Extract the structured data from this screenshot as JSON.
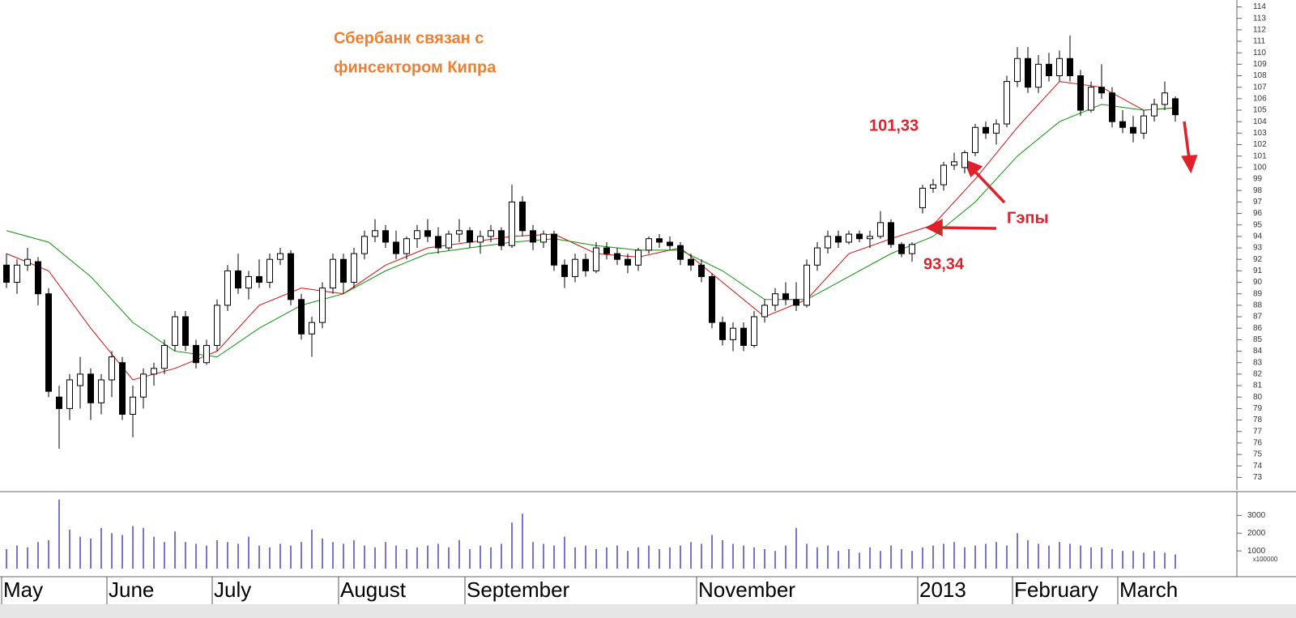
{
  "chart_data": [
    {
      "type": "candlestick",
      "annotations": {
        "title_line1": "Сбербанк связан с",
        "title_line2": "финсектором Кипра",
        "gap_high": "101,33",
        "gaps": "Гэпы",
        "gap_low": "93,34"
      },
      "categories": [
        "May",
        null,
        null,
        null,
        null,
        null,
        null,
        null,
        null,
        null,
        "June",
        null,
        null,
        null,
        null,
        null,
        null,
        null,
        null,
        null,
        "July",
        null,
        null,
        null,
        null,
        null,
        null,
        null,
        null,
        null,
        null,
        null,
        "August",
        null,
        null,
        null,
        null,
        null,
        null,
        null,
        null,
        null,
        null,
        null,
        "September",
        null,
        null,
        null,
        null,
        null,
        null,
        null,
        null,
        null,
        null,
        null,
        null,
        null,
        null,
        null,
        null,
        null,
        null,
        null,
        null,
        null,
        "November",
        null,
        null,
        null,
        null,
        null,
        null,
        null,
        null,
        null,
        null,
        null,
        null,
        null,
        null,
        null,
        null,
        null,
        null,
        null,
        null,
        "2013",
        null,
        null,
        null,
        null,
        null,
        null,
        null,
        null,
        "February",
        null,
        null,
        null,
        null,
        null,
        null,
        null,
        null,
        null,
        "March",
        null,
        null,
        null,
        null,
        null
      ],
      "values": [
        [
          91.5,
          92.5,
          89.5,
          90
        ],
        [
          90,
          92,
          89,
          91.5
        ],
        [
          91.5,
          93,
          91,
          92
        ],
        [
          91.8,
          92.2,
          88,
          89
        ],
        [
          89,
          89.5,
          80,
          80.5
        ],
        [
          80,
          81,
          75.5,
          79
        ],
        [
          79,
          82,
          78,
          81.5
        ],
        [
          81,
          83.5,
          79,
          82
        ],
        [
          82,
          82.5,
          78,
          79.5
        ],
        [
          79.5,
          82,
          78.5,
          81.5
        ],
        [
          81.5,
          84,
          80,
          83.5
        ],
        [
          83,
          83.5,
          78,
          78.5
        ],
        [
          78.5,
          81,
          76.5,
          80
        ],
        [
          80,
          82.5,
          79,
          82
        ],
        [
          82,
          83,
          81,
          82.5
        ],
        [
          82.5,
          85,
          82,
          84.5
        ],
        [
          84.5,
          87.5,
          84,
          87
        ],
        [
          87,
          87.5,
          84,
          84.5
        ],
        [
          84.5,
          85,
          82.5,
          83
        ],
        [
          83,
          85,
          82.8,
          84.5
        ],
        [
          84.5,
          88.5,
          84,
          88
        ],
        [
          88,
          91.5,
          87.5,
          91
        ],
        [
          91,
          92.5,
          89,
          89.5
        ],
        [
          89.5,
          91,
          88.5,
          90.5
        ],
        [
          90.5,
          92,
          89.5,
          90
        ],
        [
          90,
          92.5,
          89.5,
          92
        ],
        [
          92,
          93,
          91.5,
          92.5
        ],
        [
          92.5,
          92.8,
          88,
          88.5
        ],
        [
          88.5,
          89,
          85,
          85.5
        ],
        [
          85.5,
          87,
          83.5,
          86.5
        ],
        [
          86.5,
          90,
          86,
          89.5
        ],
        [
          89.5,
          92.5,
          89,
          92
        ],
        [
          92,
          92.5,
          89,
          90
        ],
        [
          90,
          93,
          89.5,
          92.5
        ],
        [
          92.5,
          94.5,
          92,
          94
        ],
        [
          94,
          95.5,
          93.5,
          94.5
        ],
        [
          94.5,
          95,
          93,
          93.5
        ],
        [
          93.5,
          94.5,
          92,
          92.5
        ],
        [
          92.5,
          94,
          92,
          93.8
        ],
        [
          93.8,
          95,
          93,
          94.5
        ],
        [
          94.5,
          95.5,
          93.5,
          94
        ],
        [
          94,
          94.8,
          92.5,
          93
        ],
        [
          93,
          94.5,
          92.8,
          94.2
        ],
        [
          94.2,
          95.5,
          93.5,
          94.5
        ],
        [
          94.5,
          94.8,
          93,
          93.5
        ],
        [
          93.5,
          94.5,
          92.5,
          94
        ],
        [
          94,
          95,
          93.5,
          94.5
        ],
        [
          94.5,
          94.8,
          92.8,
          93.2
        ],
        [
          93.2,
          98.5,
          93,
          97
        ],
        [
          97,
          97.5,
          94,
          94.5
        ],
        [
          94.5,
          95,
          92.8,
          93.5
        ],
        [
          93.5,
          94.5,
          93,
          94.2
        ],
        [
          94.2,
          94.5,
          91,
          91.5
        ],
        [
          91.5,
          92,
          89.5,
          90.5
        ],
        [
          90.5,
          92.5,
          90,
          92
        ],
        [
          92,
          92.5,
          90.5,
          91
        ],
        [
          91,
          93.5,
          90.8,
          93
        ],
        [
          93,
          93.5,
          92,
          92.5
        ],
        [
          92.5,
          93,
          91.5,
          92
        ],
        [
          92,
          92.5,
          90.8,
          91.5
        ],
        [
          91.5,
          93,
          91,
          92.8
        ],
        [
          92.8,
          94,
          92.5,
          93.8
        ],
        [
          93.8,
          94.2,
          93,
          93.5
        ],
        [
          93.5,
          94,
          92.8,
          93.2
        ],
        [
          93.2,
          93.5,
          91.5,
          92
        ],
        [
          92,
          92.5,
          91,
          91.5
        ],
        [
          91.5,
          92,
          90,
          90.5
        ],
        [
          90.5,
          90.8,
          86,
          86.5
        ],
        [
          86.5,
          87,
          84.5,
          85
        ],
        [
          85,
          86.5,
          84,
          86
        ],
        [
          86,
          86.5,
          84,
          84.5
        ],
        [
          84.5,
          87.5,
          84.3,
          87
        ],
        [
          87,
          88.5,
          86.5,
          88
        ],
        [
          88,
          89.5,
          87.5,
          89
        ],
        [
          89,
          90,
          88,
          88.5
        ],
        [
          88.5,
          90,
          87.5,
          88
        ],
        [
          88,
          92,
          87.8,
          91.5
        ],
        [
          91.5,
          93.5,
          91,
          93
        ],
        [
          93,
          94.5,
          92.5,
          94
        ],
        [
          94,
          94.5,
          93,
          93.5
        ],
        [
          93.5,
          94.5,
          93.3,
          94.2
        ],
        [
          94.2,
          94.5,
          93.5,
          93.8
        ],
        [
          93.8,
          94.5,
          93,
          94
        ],
        [
          94,
          96.2,
          93.8,
          95.2
        ],
        [
          95.2,
          95.5,
          93,
          93.3
        ],
        [
          93.3,
          93.5,
          92.2,
          92.5
        ],
        [
          92.5,
          93.5,
          91.8,
          93.3
        ],
        [
          96.5,
          98.5,
          96,
          98.2
        ],
        [
          98.2,
          99,
          97.8,
          98.5
        ],
        [
          98.5,
          100.5,
          98,
          100.2
        ],
        [
          100.2,
          101.3,
          99.8,
          100.5
        ],
        [
          100,
          101.5,
          99.5,
          101.3
        ],
        [
          101.3,
          103.8,
          101,
          103.5
        ],
        [
          103.5,
          104,
          102.5,
          103
        ],
        [
          103,
          104.2,
          102,
          103.8
        ],
        [
          103.8,
          108,
          103.5,
          107.5
        ],
        [
          107.5,
          110.5,
          107,
          109.5
        ],
        [
          109.5,
          110.5,
          106.5,
          107
        ],
        [
          107,
          109.8,
          106.5,
          109
        ],
        [
          109,
          110,
          107.5,
          108
        ],
        [
          108,
          110.2,
          107.5,
          109.5
        ],
        [
          109.5,
          111.5,
          107.5,
          108
        ],
        [
          108,
          108.5,
          104.5,
          105
        ],
        [
          105,
          107.5,
          104.8,
          107
        ],
        [
          107,
          109,
          106,
          106.5
        ],
        [
          106.5,
          107,
          103.5,
          104
        ],
        [
          104,
          105,
          103,
          103.5
        ],
        [
          103.5,
          104.5,
          102.2,
          103
        ],
        [
          103,
          105,
          102.5,
          104.5
        ],
        [
          104.5,
          106,
          104,
          105.5
        ],
        [
          105.5,
          107.5,
          105,
          106.5
        ],
        [
          106,
          106.2,
          104,
          104.6
        ]
      ],
      "lines": [
        {
          "color": "#d01010",
          "x": [
            0,
            4,
            8,
            12,
            16,
            20,
            24,
            28,
            32,
            36,
            40,
            44,
            48,
            52,
            56,
            60,
            64,
            68,
            72,
            76,
            80,
            84,
            88,
            92,
            96,
            100,
            104,
            108,
            111
          ],
          "values": [
            92.5,
            91,
            86,
            81.5,
            82.5,
            84,
            88,
            89.5,
            89,
            91.5,
            93,
            93.5,
            94,
            94.2,
            92.5,
            92.2,
            93,
            90,
            87,
            88.5,
            92.5,
            93.8,
            95,
            99,
            103.5,
            107.5,
            107,
            105,
            105.2
          ]
        },
        {
          "color": "#109010",
          "x": [
            0,
            4,
            8,
            12,
            16,
            20,
            24,
            28,
            32,
            36,
            40,
            44,
            48,
            52,
            56,
            60,
            64,
            68,
            72,
            76,
            80,
            84,
            88,
            92,
            96,
            100,
            104,
            108,
            111
          ],
          "values": [
            94.5,
            93.5,
            90.5,
            86.5,
            84,
            83.5,
            86,
            88,
            89,
            91,
            92.5,
            93,
            93.5,
            93.8,
            93.2,
            92.8,
            92.8,
            91,
            88.5,
            88.5,
            90.5,
            92.5,
            94,
            97,
            101,
            104,
            105.5,
            105,
            105.2
          ]
        }
      ],
      "ylim": [
        71.9,
        114.6
      ],
      "yticks": [
        73,
        74,
        75,
        76,
        77,
        78,
        79,
        80,
        81,
        82,
        83,
        84,
        85,
        86,
        87,
        88,
        89,
        90,
        91,
        92,
        93,
        94,
        95,
        96,
        97,
        98,
        99,
        100,
        101,
        102,
        103,
        104,
        105,
        106,
        107,
        108,
        109,
        110,
        111,
        112,
        113,
        114
      ],
      "up_color": "#ffffff",
      "down_color": "#000000"
    },
    {
      "type": "bar",
      "color": "#4848c0",
      "y_unit_label": "x100000",
      "values": [
        1100,
        1300,
        1200,
        1500,
        1600,
        3900,
        2200,
        1800,
        1700,
        2300,
        2000,
        1900,
        2400,
        2300,
        1800,
        1500,
        2100,
        1500,
        1400,
        1300,
        1600,
        1500,
        1400,
        1800,
        1300,
        1200,
        1400,
        1300,
        1500,
        2200,
        1700,
        1500,
        1400,
        1600,
        1300,
        1200,
        1500,
        1300,
        1100,
        1200,
        1300,
        1400,
        1200,
        1600,
        1100,
        1300,
        1200,
        1400,
        2600,
        3100,
        1500,
        1400,
        1300,
        1800,
        1200,
        1300,
        1100,
        1200,
        1300,
        1000,
        1200,
        1300,
        1100,
        1200,
        1300,
        1500,
        1400,
        1900,
        1600,
        1400,
        1300,
        1200,
        1100,
        1000,
        1300,
        2300,
        1400,
        1200,
        1300,
        1000,
        1100,
        900,
        1200,
        1000,
        1300,
        1100,
        1000,
        1200,
        1300,
        1400,
        1500,
        1200,
        1300,
        1400,
        1500,
        1300,
        2000,
        1600,
        1400,
        1300,
        1500,
        1400,
        1300,
        1200,
        1200,
        1100,
        1000,
        1000,
        900,
        1000,
        900,
        800
      ],
      "ylim": [
        0,
        4300
      ],
      "yticks": [
        1000,
        2000,
        3000
      ]
    }
  ]
}
